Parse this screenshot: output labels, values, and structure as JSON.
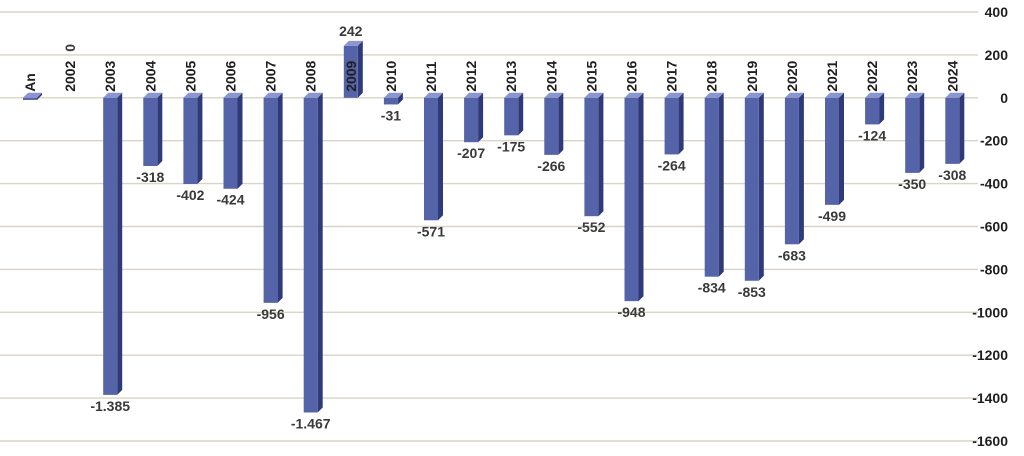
{
  "chart_data": {
    "type": "bar",
    "categories": [
      "An",
      "2002",
      "2003",
      "2004",
      "2005",
      "2006",
      "2007",
      "2008",
      "2009",
      "2010",
      "2011",
      "2012",
      "2013",
      "2014",
      "2015",
      "2016",
      "2017",
      "2018",
      "2019",
      "2020",
      "2021",
      "2022",
      "2023",
      "2024"
    ],
    "values": [
      -10,
      0,
      -1385,
      -318,
      -402,
      -424,
      -956,
      -1467,
      242,
      -31,
      -571,
      -207,
      -175,
      -266,
      -552,
      -948,
      -264,
      -834,
      -853,
      -683,
      -499,
      -124,
      -350,
      -308
    ],
    "value_labels": [
      "",
      "0",
      "-1.385",
      "-318",
      "-402",
      "-424",
      "-956",
      "-1.467",
      "242",
      "-31",
      "-571",
      "-207",
      "-175",
      "-266",
      "-552",
      "-948",
      "-264",
      "-834",
      "-853",
      "-683",
      "-499",
      "-124",
      "-350",
      "-308"
    ],
    "y_ticks": [
      400,
      200,
      0,
      -200,
      -400,
      -600,
      -800,
      -1000,
      -1200,
      -1400,
      -1600
    ],
    "ylim": [
      -1600,
      400
    ],
    "title": "",
    "xlabel": "",
    "ylabel": "",
    "grid": true,
    "axis_position": "right",
    "colors": {
      "bar": "#5563a8",
      "bar_side": "#2f3a78",
      "bar_top": "#8a96d0",
      "grid": "#d9d4c3"
    }
  }
}
